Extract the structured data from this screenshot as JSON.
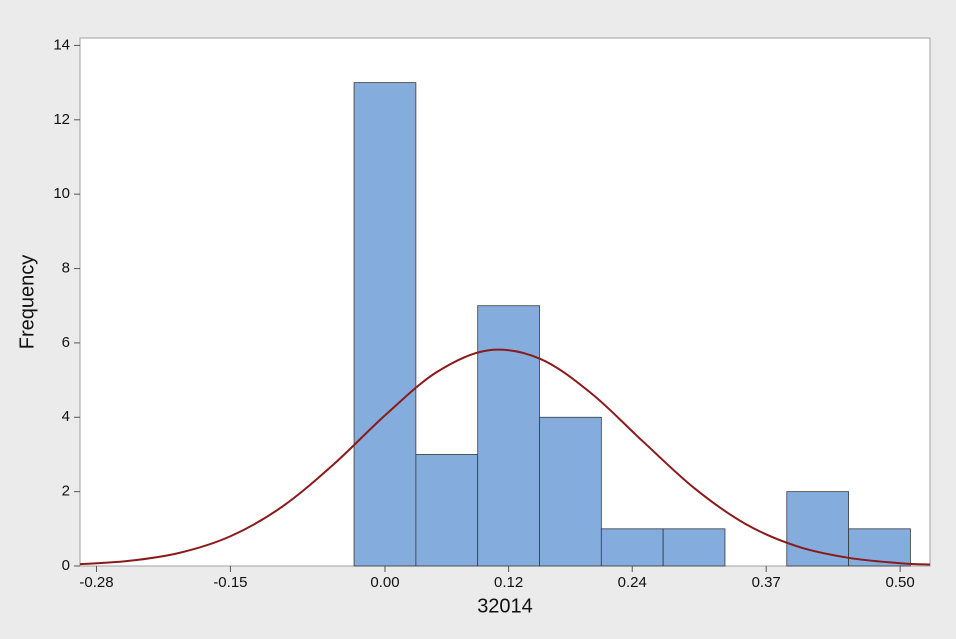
{
  "chart_data": {
    "type": "histogram",
    "x_label": "32014",
    "y_label": "Frequency",
    "bins": [
      -0.03,
      0.03,
      0.09,
      0.15,
      0.21,
      0.27,
      0.33,
      0.39,
      0.45,
      0.51
    ],
    "counts": [
      13,
      3,
      7,
      4,
      1,
      1,
      0,
      2,
      1
    ],
    "color": "#84acdc",
    "xlim": [
      -0.296,
      0.529
    ],
    "xticks": [
      -0.28,
      -0.15,
      {
        "value": 0,
        "label": "0.00"
      },
      0.12,
      0.24,
      0.37,
      {
        "value": 0.5,
        "label": "0.50"
      }
    ],
    "ylim": [
      0,
      14.2
    ],
    "yticks": [
      0,
      2,
      4,
      6,
      8,
      10,
      12,
      14
    ],
    "grid": false,
    "fit_curve": {
      "color": "#8b1a1a",
      "x": [
        -0.3,
        -0.25,
        -0.2,
        -0.15,
        -0.1,
        -0.05,
        0,
        0.05,
        0.1,
        0.15,
        0.2,
        0.25,
        0.3,
        0.35,
        0.4,
        0.45,
        0.5,
        0.53
      ],
      "y": [
        0.043,
        0.133,
        0.35,
        0.8,
        1.59,
        2.73,
        4.05,
        5.21,
        5.8,
        5.58,
        4.65,
        3.36,
        2.1,
        1.13,
        0.53,
        0.22,
        0.075,
        0.038
      ]
    }
  }
}
